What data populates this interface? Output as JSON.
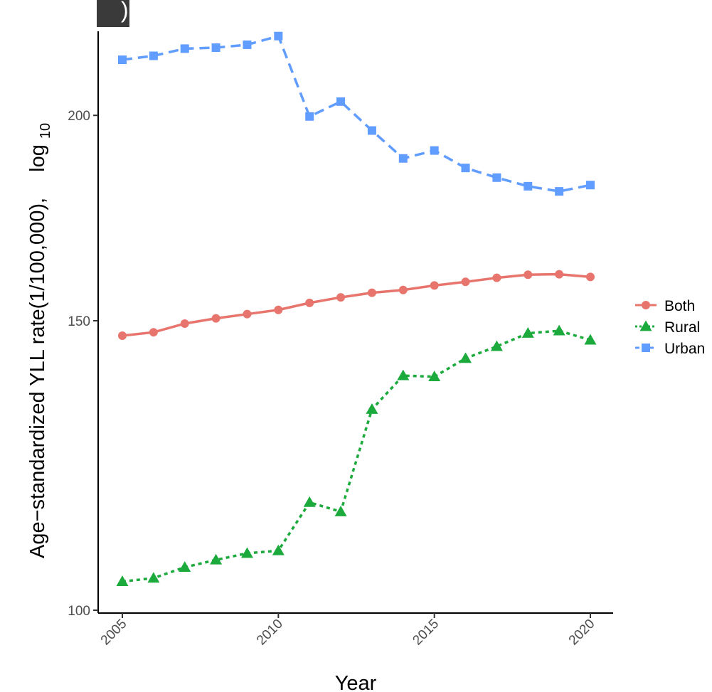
{
  "panel_label": ")",
  "chart_data": {
    "type": "line",
    "xlabel": "Year",
    "ylabel": "Age−standardized YLL rate(1/100,000),",
    "ylabel_suffix": "log",
    "ylabel_subscript": "10",
    "y_scale": "log10",
    "xlim": [
      2005,
      2020
    ],
    "ylim": [
      100,
      225
    ],
    "x_ticks": [
      "2005",
      "2010",
      "2015",
      "2020"
    ],
    "y_ticks": [
      "100",
      "150",
      "200"
    ],
    "grid": false,
    "legend_position": "right",
    "x": [
      2005,
      2006,
      2007,
      2008,
      2009,
      2010,
      2011,
      2012,
      2013,
      2014,
      2015,
      2016,
      2017,
      2018,
      2019,
      2020
    ],
    "series": [
      {
        "name": "Both",
        "color": "#E8756D",
        "marker": "circle",
        "line": "solid",
        "values": [
          146.9,
          147.6,
          149.4,
          150.5,
          151.4,
          152.3,
          153.8,
          155.0,
          156.0,
          156.6,
          157.6,
          158.4,
          159.3,
          160.0,
          160.1,
          159.5
        ]
      },
      {
        "name": "Rural",
        "color": "#1CAA3C",
        "marker": "triangle",
        "line": "dotted",
        "values": [
          104.1,
          104.6,
          106.2,
          107.3,
          108.3,
          108.7,
          116.3,
          114.8,
          132.5,
          138.9,
          138.7,
          142.3,
          144.7,
          147.4,
          147.9,
          146.0
        ]
      },
      {
        "name": "Urban",
        "color": "#619CFF",
        "marker": "square",
        "line": "dashed",
        "values": [
          216.2,
          217.4,
          219.6,
          219.9,
          220.8,
          223.5,
          199.7,
          203.9,
          195.8,
          188.3,
          190.4,
          185.8,
          183.3,
          181.1,
          179.8,
          181.4
        ]
      }
    ]
  }
}
